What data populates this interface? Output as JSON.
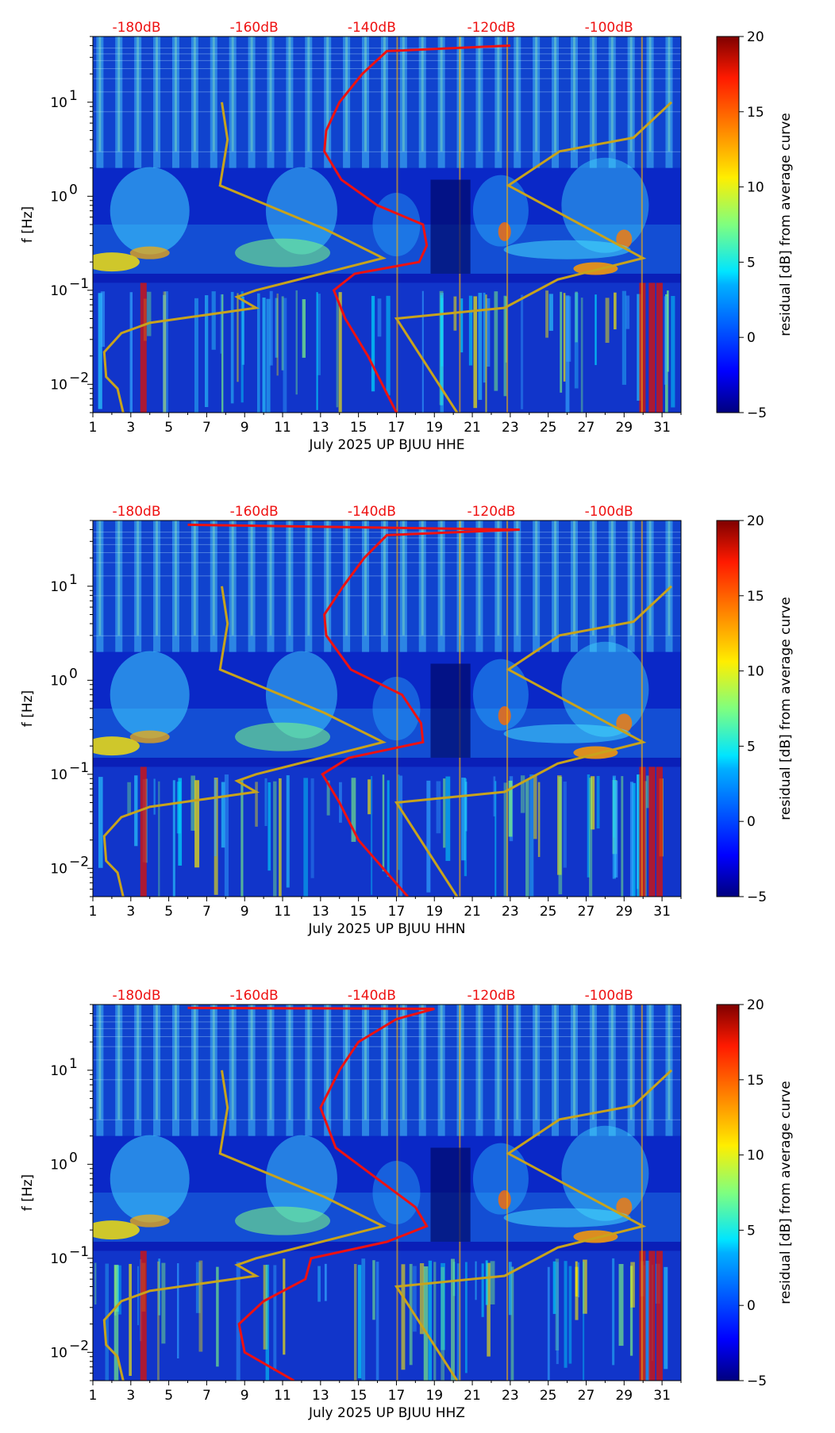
{
  "chart_data": [
    {
      "type": "heatmap",
      "title": "",
      "xlabel": "July 2025 UP BJUU  HHE",
      "ylabel": "f [Hz]",
      "colorbar_label": "residual [dB] from average curve",
      "x_ticks": [
        "1",
        "3",
        "5",
        "7",
        "9",
        "11",
        "13",
        "15",
        "17",
        "19",
        "21",
        "23",
        "25",
        "27",
        "29",
        "31"
      ],
      "y_ticks": [
        {
          "base": "10",
          "exp": "1"
        },
        {
          "base": "10",
          "exp": "0"
        },
        {
          "base": "10",
          "exp": "−1"
        },
        {
          "base": "10",
          "exp": "−2"
        }
      ],
      "colorbar_ticks": [
        "20",
        "15",
        "10",
        "5",
        "0",
        "−5"
      ],
      "db_ticks": [
        "-180dB",
        "-160dB",
        "-140dB",
        "-120dB",
        "-100dB"
      ],
      "xlim": [
        1,
        32
      ],
      "ylim_hz": [
        0.005,
        50
      ],
      "clim": [
        -5,
        20
      ],
      "red_curve_color": "#ee1111",
      "yellow_curve_color": "#c8a31c"
    },
    {
      "type": "heatmap",
      "title": "",
      "xlabel": "July 2025 UP BJUU  HHN",
      "ylabel": "f [Hz]",
      "colorbar_label": "residual [dB] from average curve",
      "x_ticks": [
        "1",
        "3",
        "5",
        "7",
        "9",
        "11",
        "13",
        "15",
        "17",
        "19",
        "21",
        "23",
        "25",
        "27",
        "29",
        "31"
      ],
      "y_ticks": [
        {
          "base": "10",
          "exp": "1"
        },
        {
          "base": "10",
          "exp": "0"
        },
        {
          "base": "10",
          "exp": "−1"
        },
        {
          "base": "10",
          "exp": "−2"
        }
      ],
      "colorbar_ticks": [
        "20",
        "15",
        "10",
        "5",
        "0",
        "−5"
      ],
      "db_ticks": [
        "-180dB",
        "-160dB",
        "-140dB",
        "-120dB",
        "-100dB"
      ],
      "xlim": [
        1,
        32
      ],
      "ylim_hz": [
        0.005,
        50
      ],
      "clim": [
        -5,
        20
      ],
      "red_curve_color": "#ee1111",
      "yellow_curve_color": "#c8a31c"
    },
    {
      "type": "heatmap",
      "title": "",
      "xlabel": "July 2025 UP BJUU  HHZ",
      "ylabel": "f [Hz]",
      "colorbar_label": "residual [dB] from average curve",
      "x_ticks": [
        "1",
        "3",
        "5",
        "7",
        "9",
        "11",
        "13",
        "15",
        "17",
        "19",
        "21",
        "23",
        "25",
        "27",
        "29",
        "31"
      ],
      "y_ticks": [
        {
          "base": "10",
          "exp": "1"
        },
        {
          "base": "10",
          "exp": "0"
        },
        {
          "base": "10",
          "exp": "−1"
        },
        {
          "base": "10",
          "exp": "−2"
        }
      ],
      "colorbar_ticks": [
        "20",
        "15",
        "10",
        "5",
        "0",
        "−5"
      ],
      "db_ticks": [
        "-180dB",
        "-160dB",
        "-140dB",
        "-120dB",
        "-100dB"
      ],
      "xlim": [
        1,
        32
      ],
      "ylim_hz": [
        0.005,
        50
      ],
      "clim": [
        -5,
        20
      ],
      "red_curve_color": "#ee1111",
      "yellow_curve_color": "#c8a31c"
    }
  ]
}
